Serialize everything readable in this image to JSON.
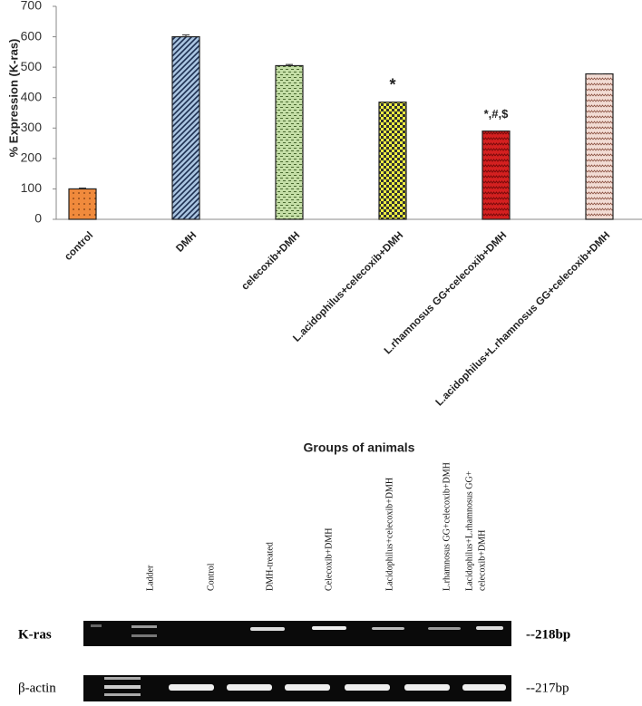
{
  "chart_data": {
    "type": "bar",
    "y_label": "% Expression (K-ras)",
    "x_label": "Groups of animals",
    "categories": [
      "control",
      "DMH",
      "celecoxib+DMH",
      "L.acidophilus+celecoxib+DMH",
      "L.rhamnosus GG+celecoxib+DMH",
      "L.acidophilus+L.rhamnosus GG+celecoxib+DMH"
    ],
    "values": [
      100,
      600,
      505,
      385,
      290,
      478
    ],
    "errors": [
      3,
      6,
      4,
      0,
      0,
      0
    ],
    "colors": [
      "#f08a3c",
      "#a9c4e0",
      "#c4dea6",
      "#eef040",
      "#d42020",
      "#f2dcd4"
    ],
    "annotations": [
      {
        "text": "*",
        "category": 3
      },
      {
        "text": "*,#,$",
        "category": 4
      }
    ],
    "ylim": [
      0,
      700
    ],
    "yticks": [
      0,
      100,
      200,
      300,
      400,
      500,
      600,
      700
    ]
  },
  "gel": {
    "lanes": [
      "Ladder",
      "Control",
      "DMH-treated",
      "Celecoxib+DMH",
      "Lacidophilus+celecoxib+DMH",
      "L.rhamnosus GG+celecoxib+DMH",
      [
        "Lacidophilus+L.rhamnosus GG+",
        "celecoxib+DMH"
      ]
    ],
    "rows": [
      {
        "label": "K-ras",
        "size": "--218bp"
      },
      {
        "label": "β-actin",
        "size": "--217bp"
      }
    ]
  }
}
